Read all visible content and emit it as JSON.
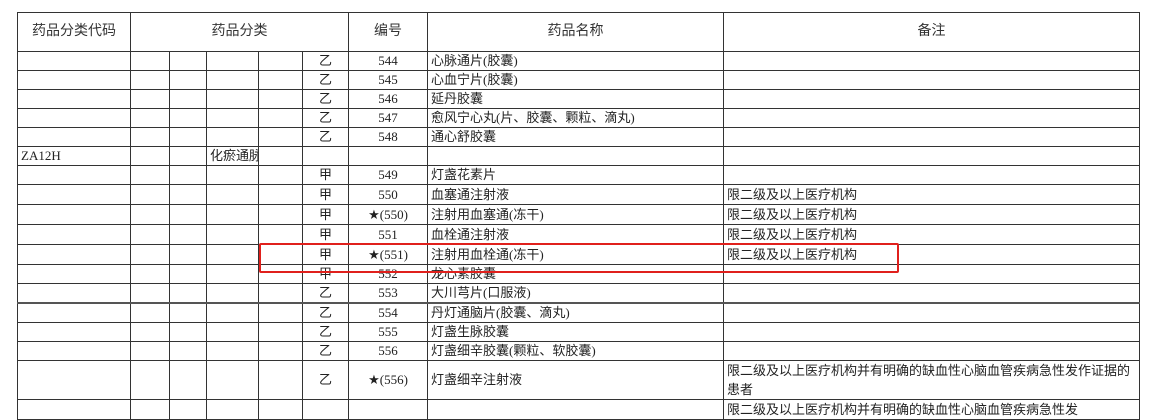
{
  "header": {
    "code": "药品分类代码",
    "category": "药品分类",
    "number": "编号",
    "name": "药品名称",
    "note": "备注"
  },
  "rows": [
    {
      "code": "",
      "category": "",
      "type": "乙",
      "number": "544",
      "name": "心脉通片(胶囊)",
      "note": ""
    },
    {
      "code": "",
      "category": "",
      "type": "乙",
      "number": "545",
      "name": "心血宁片(胶囊)",
      "note": ""
    },
    {
      "code": "",
      "category": "",
      "type": "乙",
      "number": "546",
      "name": "延丹胶囊",
      "note": ""
    },
    {
      "code": "",
      "category": "",
      "type": "乙",
      "number": "547",
      "name": "愈风宁心丸(片、胶囊、颗粒、滴丸)",
      "note": ""
    },
    {
      "code": "",
      "category": "",
      "type": "乙",
      "number": "548",
      "name": "通心舒胶囊",
      "note": ""
    },
    {
      "code": "ZA12H",
      "category": "化瘀通脉剂",
      "type": "",
      "number": "",
      "name": "",
      "note": ""
    },
    {
      "code": "",
      "category": "",
      "type": "甲",
      "number": "549",
      "name": "灯盏花素片",
      "note": ""
    },
    {
      "code": "",
      "category": "",
      "type": "甲",
      "number": "550",
      "name": "血塞通注射液",
      "note": "限二级及以上医疗机构"
    },
    {
      "code": "",
      "category": "",
      "type": "甲",
      "number": "★(550)",
      "name": "注射用血塞通(冻干)",
      "note": "限二级及以上医疗机构"
    },
    {
      "code": "",
      "category": "",
      "type": "甲",
      "number": "551",
      "name": "血栓通注射液",
      "note": "限二级及以上医疗机构"
    },
    {
      "code": "",
      "category": "",
      "type": "甲",
      "number": "★(551)",
      "name": "注射用血栓通(冻干)",
      "note": "限二级及以上医疗机构"
    },
    {
      "code": "",
      "category": "",
      "type": "甲",
      "number": "552",
      "name": "龙心素胶囊",
      "note": ""
    },
    {
      "code": "",
      "category": "",
      "type": "乙",
      "number": "553",
      "name": "大川芎片(口服液)",
      "note": ""
    },
    {
      "code": "",
      "category": "",
      "type": "乙",
      "number": "554",
      "name": "丹灯通脑片(胶囊、滴丸)",
      "note": ""
    },
    {
      "code": "",
      "category": "",
      "type": "乙",
      "number": "555",
      "name": "灯盏生脉胶囊",
      "note": ""
    },
    {
      "code": "",
      "category": "",
      "type": "乙",
      "number": "556",
      "name": "灯盏细辛胶囊(颗粒、软胶囊)",
      "note": ""
    },
    {
      "code": "",
      "category": "",
      "type": "乙",
      "number": "★(556)",
      "name": "灯盏细辛注射液",
      "note": "限二级及以上医疗机构并有明确的缺血性心脑血管疾病急性发作证据的患者"
    },
    {
      "code": "",
      "category": "",
      "type": "",
      "number": "",
      "name": "",
      "note": "限二级及以上医疗机构并有明确的缺血性心脑血管疾病急性发"
    }
  ],
  "highlight_color": "#e0201c"
}
